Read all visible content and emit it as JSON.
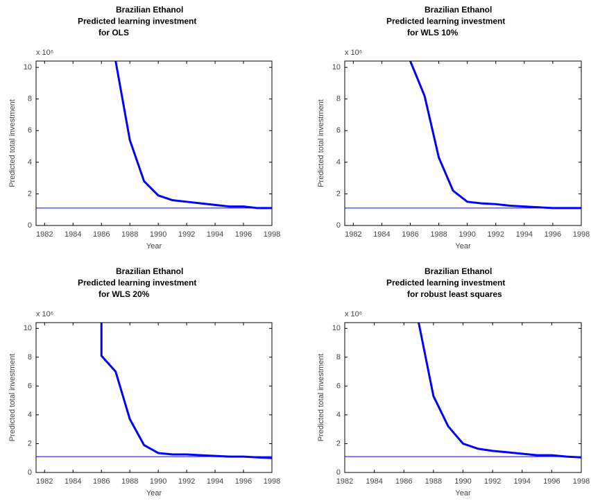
{
  "chart_data": [
    {
      "type": "line",
      "title": [
        "Brazilian Ethanol",
        "Predicted learning investment",
        "for OLS"
      ],
      "xlabel": "Year",
      "ylabel": "Predicted total investment",
      "y_multiplier": "x 10⁶",
      "xlim": [
        1981.4,
        1998
      ],
      "xticks": [
        1982,
        1984,
        1986,
        1988,
        1990,
        1992,
        1994,
        1996,
        1998
      ],
      "ylim": [
        0,
        10.4
      ],
      "yticks": [
        0,
        2,
        4,
        6,
        8,
        10
      ],
      "x": [
        1987,
        1988,
        1989,
        1990,
        1991,
        1992,
        1993,
        1994,
        1995,
        1996,
        1997,
        1998
      ],
      "values": [
        10.4,
        5.4,
        2.8,
        1.9,
        1.6,
        1.5,
        1.4,
        1.3,
        1.2,
        1.2,
        1.1,
        1.1
      ],
      "color": "#0000ff",
      "hline": 1.1
    },
    {
      "type": "line",
      "title": [
        "Brazilian Ethanol",
        "Predicted learning investment",
        "for WLS 10%"
      ],
      "xlabel": "Year",
      "ylabel": "Predicted total investment",
      "y_multiplier": "x 10⁶",
      "xlim": [
        1981.4,
        1998
      ],
      "xticks": [
        1982,
        1984,
        1986,
        1988,
        1990,
        1992,
        1994,
        1996,
        1998
      ],
      "ylim": [
        0,
        10.4
      ],
      "yticks": [
        0,
        2,
        4,
        6,
        8,
        10
      ],
      "x": [
        1986,
        1987,
        1988,
        1989,
        1990,
        1991,
        1992,
        1993,
        1994,
        1995,
        1996,
        1997,
        1998
      ],
      "values": [
        10.4,
        8.2,
        4.3,
        2.2,
        1.5,
        1.4,
        1.35,
        1.25,
        1.2,
        1.15,
        1.1,
        1.1,
        1.1
      ],
      "color": "#0000ff",
      "hline": 1.1
    },
    {
      "type": "line",
      "title": [
        "Brazilian Ethanol",
        "Predicted learning investment",
        "for WLS 20%"
      ],
      "xlabel": "Year",
      "ylabel": "Predicted total investment",
      "y_multiplier": "x 10⁶",
      "xlim": [
        1981.4,
        1998
      ],
      "xticks": [
        1982,
        1984,
        1986,
        1988,
        1990,
        1992,
        1994,
        1996,
        1998
      ],
      "ylim": [
        0,
        10.4
      ],
      "yticks": [
        0,
        2,
        4,
        6,
        8,
        10
      ],
      "x": [
        1986,
        1986,
        1987,
        1988,
        1989,
        1990,
        1991,
        1992,
        1993,
        1994,
        1995,
        1996,
        1997,
        1998
      ],
      "values": [
        10.4,
        8.1,
        7.0,
        3.7,
        1.9,
        1.35,
        1.25,
        1.25,
        1.2,
        1.15,
        1.1,
        1.1,
        1.05,
        1.0
      ],
      "color": "#0000ff",
      "hline": 1.1
    },
    {
      "type": "line",
      "title": [
        "Brazilian Ethanol",
        "Predicted learning investment",
        "for robust least squares"
      ],
      "xlabel": "Year",
      "ylabel": "Predicted total investment",
      "y_multiplier": "x 10⁶",
      "xlim": [
        1982,
        1998
      ],
      "xticks": [
        1982,
        1984,
        1986,
        1988,
        1990,
        1992,
        1994,
        1996,
        1998
      ],
      "ylim": [
        0,
        10.4
      ],
      "yticks": [
        0,
        2,
        4,
        6,
        8,
        10
      ],
      "x": [
        1987,
        1988,
        1989,
        1990,
        1991,
        1992,
        1993,
        1994,
        1995,
        1996,
        1997,
        1998
      ],
      "values": [
        10.4,
        5.3,
        3.2,
        2.0,
        1.65,
        1.5,
        1.4,
        1.3,
        1.2,
        1.2,
        1.1,
        1.05
      ],
      "color": "#0000ff",
      "hline": 1.1
    }
  ]
}
